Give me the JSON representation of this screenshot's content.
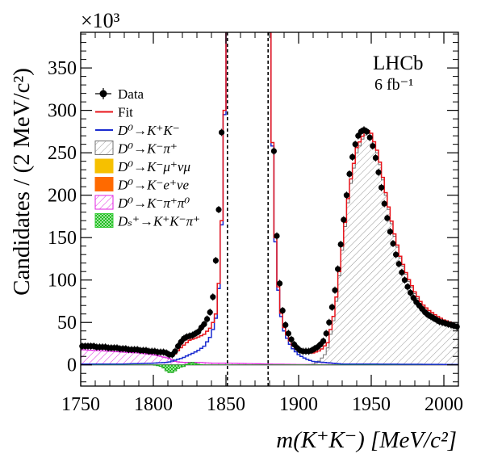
{
  "chart_data": {
    "type": "line",
    "xlabel": "m(K⁺K⁻) [MeV/c²]",
    "ylabel": "Candidates / (2 MeV/c²)",
    "y_multiplier": "×10³",
    "experiment_label": "LHCb",
    "lumi_label": "6 fb⁻¹",
    "xlim": [
      1750,
      2010
    ],
    "ylim": [
      -25,
      392
    ],
    "x_ticks": [
      1750,
      1800,
      1850,
      1900,
      1950,
      2000
    ],
    "y_ticks": [
      0,
      50,
      100,
      150,
      200,
      250,
      300,
      350
    ],
    "excluded_region": [
      1851,
      1879
    ],
    "legend_position": "top-left",
    "legend": [
      {
        "label": "Data",
        "style": "marker",
        "color": "#000000"
      },
      {
        "label": "Fit",
        "style": "line",
        "color": "#e8141b"
      },
      {
        "label": "D⁰→K⁺K⁻",
        "style": "line",
        "color": "#1a2bd0"
      },
      {
        "label": "D⁰→K⁻π⁺",
        "style": "hatch",
        "color": "#808080"
      },
      {
        "label": "D⁰→K⁻μ⁺νμ",
        "style": "fill",
        "color": "#f6c000"
      },
      {
        "label": "D⁰→K⁻e⁺νe",
        "style": "fill",
        "color": "#ff6a00"
      },
      {
        "label": "D⁰→K⁻π⁺π⁰",
        "style": "hatch",
        "color": "#e020e0"
      },
      {
        "label": "Dₛ⁺→K⁺K⁻π⁺",
        "style": "checker",
        "color": "#33cc33"
      }
    ],
    "series": [
      {
        "name": "Data",
        "x": [
          1751,
          1753,
          1755,
          1757,
          1759,
          1761,
          1763,
          1765,
          1767,
          1769,
          1771,
          1773,
          1775,
          1777,
          1779,
          1781,
          1783,
          1785,
          1787,
          1789,
          1791,
          1793,
          1795,
          1797,
          1799,
          1801,
          1803,
          1805,
          1807,
          1809,
          1811,
          1813,
          1815,
          1817,
          1819,
          1821,
          1823,
          1825,
          1827,
          1829,
          1831,
          1833,
          1835,
          1837,
          1839,
          1841,
          1843,
          1845,
          1847,
          1883,
          1885,
          1887,
          1889,
          1891,
          1893,
          1895,
          1897,
          1899,
          1901,
          1903,
          1905,
          1907,
          1909,
          1911,
          1913,
          1915,
          1917,
          1919,
          1921,
          1923,
          1925,
          1927,
          1929,
          1931,
          1933,
          1935,
          1937,
          1939,
          1941,
          1943,
          1945,
          1947,
          1949,
          1951,
          1953,
          1955,
          1957,
          1959,
          1961,
          1963,
          1965,
          1967,
          1969,
          1971,
          1973,
          1975,
          1977,
          1979,
          1981,
          1983,
          1985,
          1987,
          1989,
          1991,
          1993,
          1995,
          1997,
          1999,
          2001,
          2003,
          2005,
          2007,
          2009
        ],
        "y": [
          22,
          22,
          22,
          22,
          22,
          21,
          21,
          21,
          21,
          20,
          20,
          20,
          20,
          19,
          19,
          19,
          18,
          18,
          18,
          18,
          17,
          17,
          17,
          16,
          16,
          16,
          15,
          15,
          15,
          14,
          12,
          12,
          16,
          22,
          27,
          31,
          33,
          34,
          35,
          37,
          39,
          44,
          48,
          54,
          62,
          80,
          123,
          183,
          274,
          252,
          152,
          96,
          64,
          47,
          37,
          30,
          24,
          20,
          17,
          16,
          16,
          16,
          17,
          19,
          21,
          24,
          28,
          37,
          50,
          68,
          88,
          113,
          142,
          171,
          200,
          225,
          245,
          260,
          270,
          275,
          277,
          275,
          268,
          258,
          244,
          227,
          209,
          190,
          173,
          157,
          143,
          130,
          119,
          109,
          100,
          92,
          85,
          79,
          74,
          70,
          66,
          62,
          59,
          57,
          55,
          53,
          51,
          50,
          49,
          48,
          47,
          46,
          45
        ]
      },
      {
        "name": "Fit",
        "x": [
          1750,
          1760,
          1770,
          1780,
          1790,
          1800,
          1805,
          1810,
          1812,
          1815,
          1820,
          1825,
          1830,
          1835,
          1840,
          1843,
          1845,
          1847,
          1849,
          1850,
          1880,
          1882,
          1884,
          1886,
          1888,
          1890,
          1893,
          1896,
          1900,
          1905,
          1910,
          1915,
          1920,
          1925,
          1930,
          1935,
          1940,
          1945,
          1948,
          1950,
          1955,
          1960,
          1965,
          1970,
          1975,
          1980,
          1985,
          1990,
          1995,
          2000,
          2005,
          2010
        ],
        "y": [
          20,
          22,
          21,
          20,
          18,
          16,
          14,
          12,
          10,
          13,
          22,
          29,
          32,
          36,
          45,
          60,
          96,
          170,
          300,
          392,
          392,
          262,
          150,
          92,
          61,
          44,
          31,
          23,
          17,
          14,
          14,
          17,
          26,
          65,
          140,
          210,
          256,
          273,
          276,
          273,
          248,
          203,
          161,
          128,
          104,
          86,
          72,
          64,
          58,
          53,
          50,
          46
        ]
      },
      {
        "name": "D⁰→K⁺K⁻",
        "x": [
          1750,
          1780,
          1800,
          1810,
          1820,
          1830,
          1835,
          1840,
          1843,
          1845,
          1847,
          1849,
          1850,
          1880,
          1882,
          1884,
          1886,
          1888,
          1890,
          1893,
          1896,
          1900,
          1905,
          1910,
          1930,
          2010
        ],
        "y": [
          1,
          1,
          2,
          3,
          8,
          16,
          22,
          35,
          55,
          90,
          165,
          295,
          392,
          392,
          258,
          145,
          88,
          57,
          40,
          27,
          19,
          12,
          7,
          4,
          1,
          0.5
        ]
      },
      {
        "name": "D⁰→K⁻π⁺",
        "x": [
          1905,
          1910,
          1913,
          1915,
          1918,
          1920,
          1925,
          1930,
          1935,
          1940,
          1945,
          1948,
          1950,
          1955,
          1960,
          1965,
          1970,
          1975,
          1980,
          1985,
          1990,
          1995,
          2000,
          2005,
          2010
        ],
        "y": [
          0,
          1,
          3,
          6,
          12,
          20,
          60,
          135,
          205,
          250,
          270,
          273,
          270,
          245,
          200,
          158,
          126,
          102,
          84,
          70,
          62,
          56,
          51,
          48,
          45
        ]
      },
      {
        "name": "D⁰→K⁻π⁺π⁰",
        "x": [
          1750,
          1760,
          1770,
          1780,
          1790,
          1800,
          1805,
          1810,
          1813,
          1815,
          1820,
          1830,
          1840,
          1850,
          1880,
          1900,
          1950,
          2010
        ],
        "y": [
          18,
          17,
          16,
          15,
          14,
          12,
          10,
          8,
          6,
          4,
          3,
          3,
          2,
          2,
          1,
          0.5,
          0.3,
          0.2
        ]
      },
      {
        "name": "Dₛ⁺→K⁺K⁻π⁺",
        "x": [
          1750,
          1800,
          1806,
          1809,
          1812,
          1815,
          1818,
          1821,
          1824,
          1827,
          1830,
          1834,
          1840,
          1850,
          2010
        ],
        "y": [
          0,
          0,
          -2,
          -7,
          -10,
          -7,
          -3,
          -2,
          2,
          3,
          1,
          0,
          0,
          0,
          0
        ]
      }
    ]
  }
}
